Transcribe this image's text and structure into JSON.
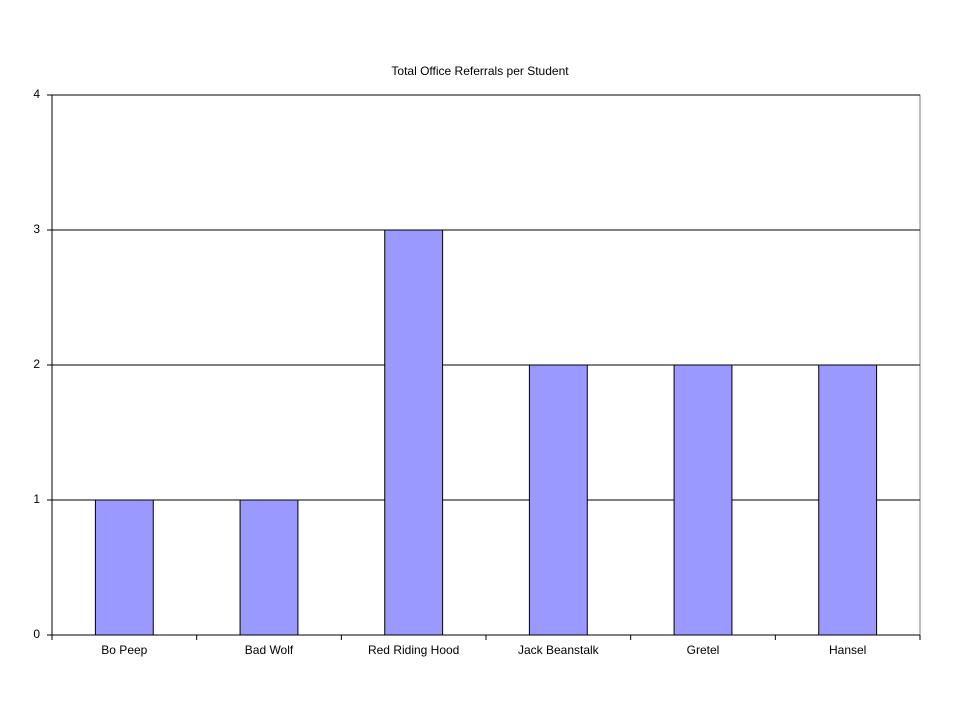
{
  "chart_data": {
    "type": "bar",
    "title": "Total Office Referrals per Student",
    "categories": [
      "Bo Peep",
      "Bad Wolf",
      "Red Riding Hood",
      "Jack Beanstalk",
      "Gretel",
      "Hansel"
    ],
    "values": [
      1,
      1,
      3,
      2,
      2,
      2
    ],
    "color": "#9999ff",
    "ylim": [
      0,
      4
    ],
    "yticks": [
      0,
      1,
      2,
      3,
      4
    ],
    "grid": true
  }
}
